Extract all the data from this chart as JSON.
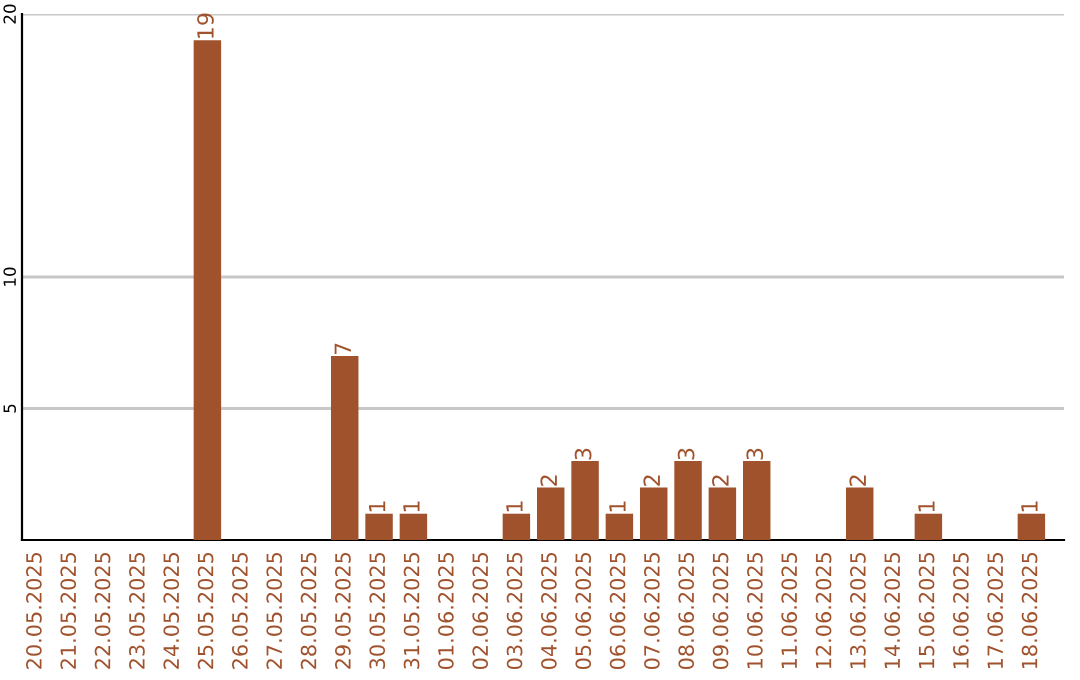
{
  "chart_data": {
    "type": "bar",
    "categories": [
      "20.05.2025",
      "21.05.2025",
      "22.05.2025",
      "23.05.2025",
      "24.05.2025",
      "25.05.2025",
      "26.05.2025",
      "27.05.2025",
      "28.05.2025",
      "29.05.2025",
      "30.05.2025",
      "31.05.2025",
      "01.06.2025",
      "02.06.2025",
      "03.06.2025",
      "04.06.2025",
      "05.06.2025",
      "06.06.2025",
      "07.06.2025",
      "08.06.2025",
      "09.06.2025",
      "10.06.2025",
      "11.06.2025",
      "12.06.2025",
      "13.06.2025",
      "14.06.2025",
      "15.06.2025",
      "16.06.2025",
      "17.06.2025",
      "18.06.2025"
    ],
    "values": [
      0,
      0,
      0,
      0,
      0,
      19,
      0,
      0,
      0,
      7,
      1,
      1,
      0,
      0,
      1,
      2,
      3,
      1,
      2,
      3,
      2,
      3,
      0,
      0,
      2,
      0,
      1,
      0,
      0,
      1
    ],
    "value_labels": [
      null,
      null,
      null,
      null,
      null,
      "19",
      null,
      null,
      null,
      "7",
      "1",
      "1",
      null,
      null,
      "1",
      "2",
      "3",
      "1",
      "2",
      "3",
      "2",
      "3",
      null,
      null,
      "2",
      null,
      "1",
      null,
      null,
      "1"
    ],
    "color": "#a0522d",
    "ylim": [
      0,
      20
    ],
    "yticks": [
      5,
      10,
      20
    ],
    "grid": "y",
    "legend": false
  }
}
